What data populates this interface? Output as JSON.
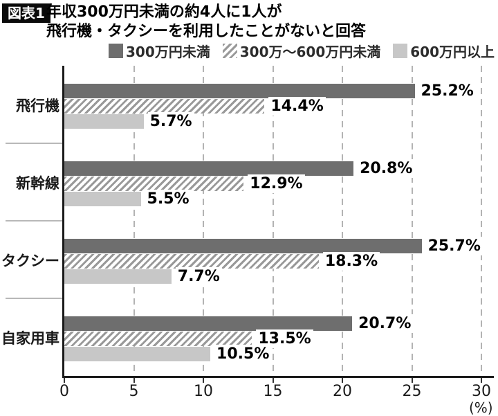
{
  "figure_label": "図表1",
  "title": {
    "line1": "年収300万円未満の約4人に1人が",
    "line2": "飛行機・タクシーを利用したことがないと回答"
  },
  "legend": [
    {
      "label": "300万円未満",
      "swatch": "solid-dark"
    },
    {
      "label": "300万〜600万円未満",
      "swatch": "hatched"
    },
    {
      "label": "600万円以上",
      "swatch": "solid-light"
    }
  ],
  "colors": {
    "series_dark": "#6e6e6e",
    "hatch_stripe": "#999999",
    "hatch_bg": "#ffffff",
    "series_light": "#c7c7c7",
    "axis": "#1a1a1a",
    "gridline": "#b3b3b3",
    "separator": "#b8b8b8",
    "badge_bg": "#0a0a0a",
    "badge_text": "#ffffff"
  },
  "chart_data": {
    "type": "bar",
    "orientation": "horizontal",
    "title": "年収300万円未満の約4人に1人が飛行機・タクシーを利用したことがないと回答",
    "categories": [
      "飛行機",
      "新幹線",
      "タクシー",
      "自家用車"
    ],
    "category_slugs": [
      "airplane",
      "shinkansen",
      "taxi",
      "private-car"
    ],
    "series": [
      {
        "name": "300万円未満",
        "slug": "under-300",
        "values": [
          25.2,
          20.8,
          25.7,
          20.7
        ]
      },
      {
        "name": "300万〜600万円未満",
        "slug": "300-to-600",
        "values": [
          14.4,
          12.9,
          18.3,
          13.5
        ]
      },
      {
        "name": "600万円以上",
        "slug": "over-600",
        "values": [
          5.7,
          5.5,
          7.7,
          10.5
        ]
      }
    ],
    "value_suffix": "%",
    "xlabel": "(%)",
    "xlim": [
      0,
      30
    ],
    "xticks": [
      0,
      5,
      10,
      15,
      20,
      25,
      30
    ],
    "grid": "dashed-vertical",
    "legend_position": "top"
  }
}
